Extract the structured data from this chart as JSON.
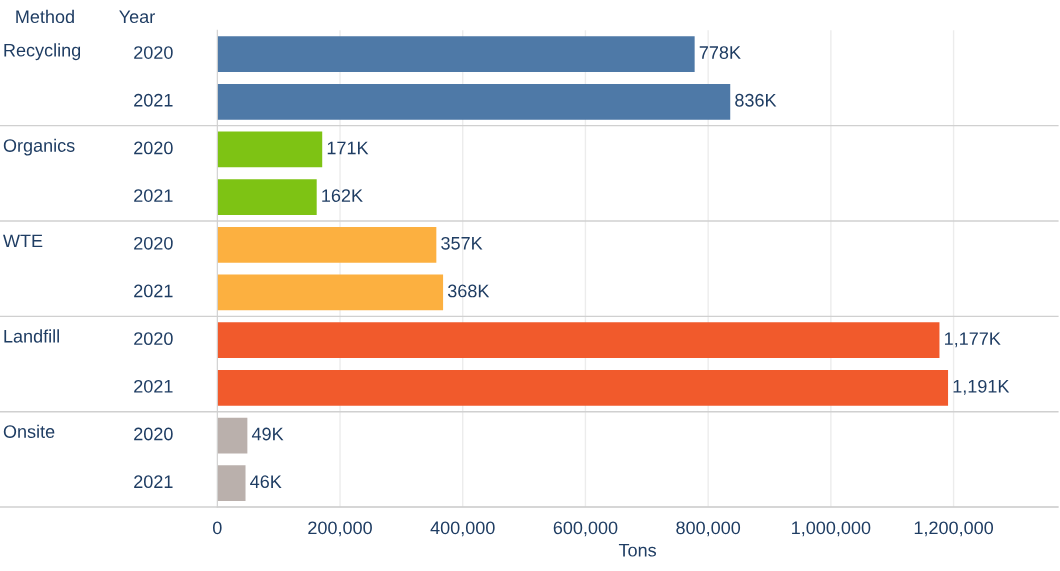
{
  "chart_data": {
    "type": "bar",
    "orientation": "horizontal",
    "categories": [
      "2020",
      "2021",
      "2020",
      "2021",
      "2020",
      "2021",
      "2020",
      "2021",
      "2020",
      "2021"
    ],
    "values": [
      778000,
      836000,
      171000,
      162000,
      357000,
      368000,
      1177000,
      1191000,
      49000,
      46000
    ],
    "colors": [
      "#4e79a7",
      "#4e79a7",
      "#7ec314",
      "#7ec314",
      "#fcb040",
      "#fcb040",
      "#f15a2c",
      "#f15a2c",
      "#bab0ac",
      "#bab0ac"
    ],
    "value_labels": [
      "778K",
      "836K",
      "171K",
      "162K",
      "357K",
      "368K",
      "1,177K",
      "1,191K",
      "49K",
      "46K"
    ],
    "xlabel": "Tons",
    "xlim": [
      0,
      1370000
    ],
    "xticks": [
      0,
      {
        "value": 200000,
        "label": "200,000"
      },
      {
        "value": 400000,
        "label": "400,000"
      },
      {
        "value": 600000,
        "label": "600,000"
      },
      {
        "value": 800000,
        "label": "800,000"
      },
      {
        "value": 1000000,
        "label": "1,000,000"
      },
      {
        "value": 1200000,
        "label": "1,200,000"
      }
    ],
    "grid": "x",
    "annotations": [
      "Method",
      "Year",
      "Recycling",
      "Organics",
      "WTE",
      "Landfill",
      "Onsite"
    ]
  }
}
